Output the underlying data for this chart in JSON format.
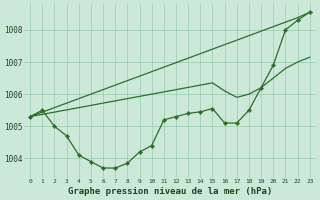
{
  "background_color": "#cce8d8",
  "grid_color": "#99ccb0",
  "line_color": "#2d6e2d",
  "title": "Graphe pression niveau de la mer (hPa)",
  "ylabel_ticks": [
    1004,
    1005,
    1006,
    1007,
    1008
  ],
  "xlim": [
    -0.5,
    23.5
  ],
  "ylim": [
    1003.4,
    1008.8
  ],
  "hours": [
    0,
    1,
    2,
    3,
    4,
    5,
    6,
    7,
    8,
    9,
    10,
    11,
    12,
    13,
    14,
    15,
    16,
    17,
    18,
    19,
    20,
    21,
    22,
    23
  ],
  "series1": [
    1005.3,
    1005.5,
    1005.0,
    1004.7,
    1004.1,
    1003.9,
    1003.7,
    1003.7,
    1003.85,
    1004.2,
    1004.4,
    1005.2,
    1005.3,
    1005.4,
    1005.45,
    1005.55,
    1005.1,
    1005.1,
    1005.5,
    1006.2,
    1006.9,
    1008.0,
    1008.3,
    1008.55
  ],
  "series2": [
    1005.3,
    1005.44,
    1005.58,
    1005.72,
    1005.86,
    1006.0,
    1006.14,
    1006.28,
    1006.42,
    1006.56,
    1006.7,
    1006.84,
    1006.98,
    1007.12,
    1007.26,
    1007.4,
    1007.54,
    1007.68,
    1007.82,
    1007.96,
    1008.1,
    1008.24,
    1008.38,
    1008.55
  ],
  "series3": [
    1005.3,
    1005.37,
    1005.44,
    1005.51,
    1005.58,
    1005.65,
    1005.72,
    1005.79,
    1005.86,
    1005.93,
    1006.0,
    1006.07,
    1006.14,
    1006.21,
    1006.28,
    1006.35,
    1006.1,
    1005.9,
    1006.0,
    1006.2,
    1006.5,
    1006.8,
    1007.0,
    1007.15
  ],
  "xtick_labels": [
    "0",
    "1",
    "2",
    "3",
    "4",
    "5",
    "6",
    "7",
    "8",
    "9",
    "10",
    "11",
    "12",
    "13",
    "14",
    "15",
    "16",
    "17",
    "18",
    "19",
    "20",
    "21",
    "22",
    "23"
  ]
}
